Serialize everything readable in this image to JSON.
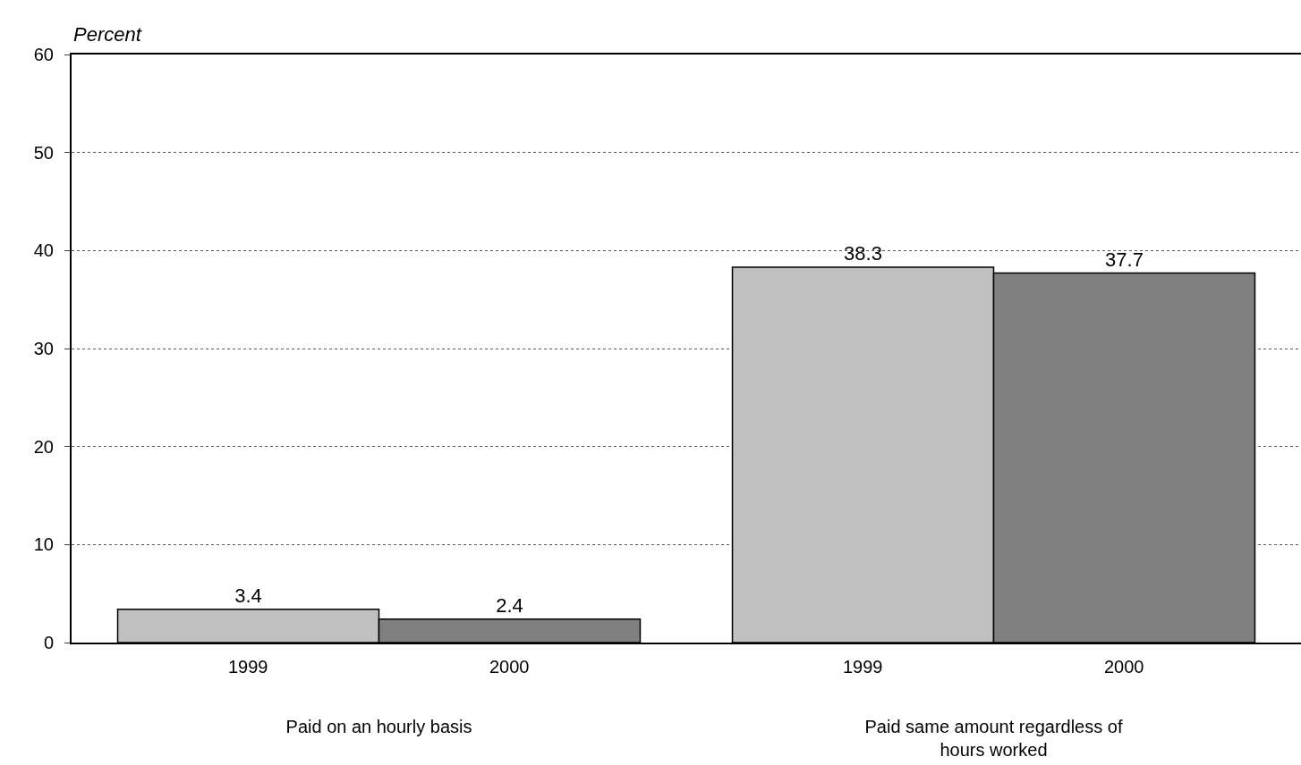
{
  "chart_data": {
    "type": "bar",
    "ylabel": "Percent",
    "categories": [
      "Paid on an hourly basis",
      "Paid same amount regardless of hours worked"
    ],
    "series": [
      {
        "name": "1999",
        "color": "#c0c0c0",
        "values": [
          3.4,
          38.3
        ]
      },
      {
        "name": "2000",
        "color": "#808080",
        "values": [
          2.4,
          37.7
        ]
      }
    ],
    "ylim": [
      0,
      60
    ],
    "yticks": [
      0,
      10,
      20,
      30,
      40,
      50,
      60
    ],
    "grid": "y",
    "data_labels": true,
    "legend": false
  }
}
